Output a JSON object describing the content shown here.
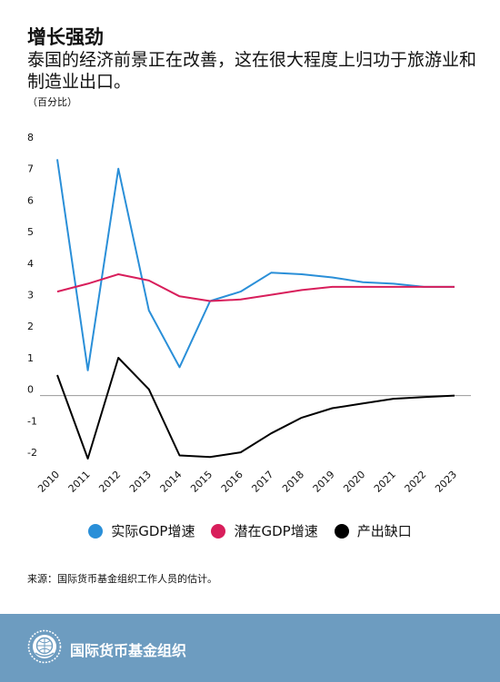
{
  "header": {
    "title": "增长强劲",
    "subtitle": "泰国的经济前景正在改善，这在很大程度上归功于旅游业和制造业出口。",
    "unit": "（百分比）"
  },
  "chart_data": {
    "type": "line",
    "x": [
      "2010",
      "2011",
      "2012",
      "2013",
      "2014",
      "2015",
      "2016",
      "2017",
      "2018",
      "2019",
      "2020",
      "2021",
      "2022",
      "2023"
    ],
    "ylim": [
      -2,
      8
    ],
    "yticks": [
      -2,
      -1,
      0,
      1,
      2,
      3,
      4,
      5,
      6,
      7,
      8
    ],
    "grid": false,
    "legend_position": "bottom",
    "series": [
      {
        "name": "实际GDP增速",
        "color": "#2a8fd8",
        "values": [
          7.5,
          0.8,
          7.2,
          2.7,
          0.9,
          3.0,
          3.3,
          3.9,
          3.85,
          3.75,
          3.6,
          3.55,
          3.45,
          3.45
        ]
      },
      {
        "name": "潜在GDP增速",
        "color": "#d81e5b",
        "values": [
          3.3,
          3.55,
          3.85,
          3.65,
          3.15,
          3.0,
          3.05,
          3.2,
          3.35,
          3.45,
          3.45,
          3.45,
          3.45,
          3.45
        ]
      },
      {
        "name": "产出缺口",
        "color": "#000000",
        "values": [
          0.65,
          -2.0,
          1.2,
          0.2,
          -1.9,
          -1.95,
          -1.8,
          -1.2,
          -0.7,
          -0.4,
          -0.25,
          -0.1,
          -0.05,
          0.0
        ]
      }
    ]
  },
  "legend": [
    {
      "label": "实际GDP增速",
      "color": "#2a8fd8"
    },
    {
      "label": "潜在GDP增速",
      "color": "#d81e5b"
    },
    {
      "label": "产出缺口",
      "color": "#000000"
    }
  ],
  "source": "来源：国际货币基金组织工作人员的估计。",
  "footer": {
    "org": "国际货币基金组织",
    "background": "#6d9cc0"
  }
}
